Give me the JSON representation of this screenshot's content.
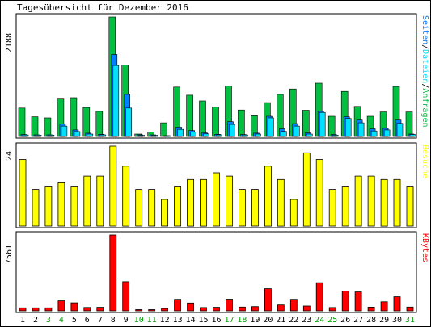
{
  "chart_data": [
    {
      "type": "bar",
      "title": "Tagesübersicht für Dezember 2016",
      "categories": [
        "1",
        "2",
        "3",
        "4",
        "5",
        "6",
        "7",
        "8",
        "9",
        "10",
        "11",
        "12",
        "13",
        "14",
        "15",
        "16",
        "17",
        "18",
        "19",
        "20",
        "21",
        "22",
        "23",
        "24",
        "25",
        "26",
        "27",
        "28",
        "29",
        "30",
        "31"
      ],
      "weekend_days": [
        "3",
        "4",
        "10",
        "11",
        "17",
        "18",
        "24",
        "25",
        "31"
      ],
      "ymax_label": "2188",
      "ylim": [
        0,
        2188
      ],
      "series": [
        {
          "name": "Seiten",
          "color": "#0080ff",
          "values": [
            35,
            30,
            30,
            230,
            120,
            60,
            40,
            1500,
            770,
            30,
            30,
            10,
            170,
            110,
            65,
            40,
            270,
            35,
            60,
            370,
            140,
            235,
            65,
            460,
            35,
            360,
            300,
            140,
            150,
            300,
            45
          ]
        },
        {
          "name": "Dateien",
          "color": "#00e0ff",
          "values": [
            28,
            25,
            25,
            190,
            90,
            45,
            30,
            1300,
            520,
            22,
            22,
            8,
            130,
            85,
            48,
            30,
            220,
            28,
            45,
            340,
            95,
            190,
            45,
            440,
            25,
            330,
            250,
            100,
            120,
            240,
            35
          ]
        },
        {
          "name": "Anfragen",
          "color": "#00c040",
          "values": [
            520,
            360,
            340,
            700,
            710,
            530,
            460,
            2188,
            1310,
            45,
            80,
            250,
            905,
            755,
            650,
            540,
            925,
            485,
            380,
            620,
            770,
            870,
            480,
            975,
            370,
            825,
            550,
            370,
            450,
            915,
            450
          ]
        }
      ],
      "right_labels": [
        "Seiten",
        "/",
        "Dateien",
        "/",
        "Anfragen"
      ]
    },
    {
      "type": "bar",
      "ymax_label": "24",
      "ylim": [
        0,
        24
      ],
      "series": [
        {
          "name": "Besuche",
          "color": "#ffff00",
          "values": [
            20,
            11,
            12,
            13,
            12,
            15,
            15,
            24,
            18,
            11,
            11,
            8,
            12,
            14,
            14,
            16,
            15,
            11,
            11,
            18,
            14,
            8,
            22,
            20,
            11,
            12,
            15,
            15,
            14,
            14,
            12
          ]
        }
      ]
    },
    {
      "type": "bar",
      "ymax_label": "7561",
      "ylim": [
        0,
        7561
      ],
      "series": [
        {
          "name": "KBytes",
          "color": "#ff0000",
          "values": [
            300,
            300,
            300,
            1000,
            800,
            340,
            350,
            7561,
            2900,
            120,
            120,
            230,
            1150,
            780,
            330,
            350,
            1170,
            380,
            430,
            2200,
            590,
            1150,
            480,
            2800,
            330,
            1980,
            1880,
            370,
            900,
            1400,
            380
          ]
        }
      ]
    }
  ],
  "colors": {
    "weekday_label": "#000000",
    "weekend_label": "#00a000",
    "frame": "#000000"
  }
}
